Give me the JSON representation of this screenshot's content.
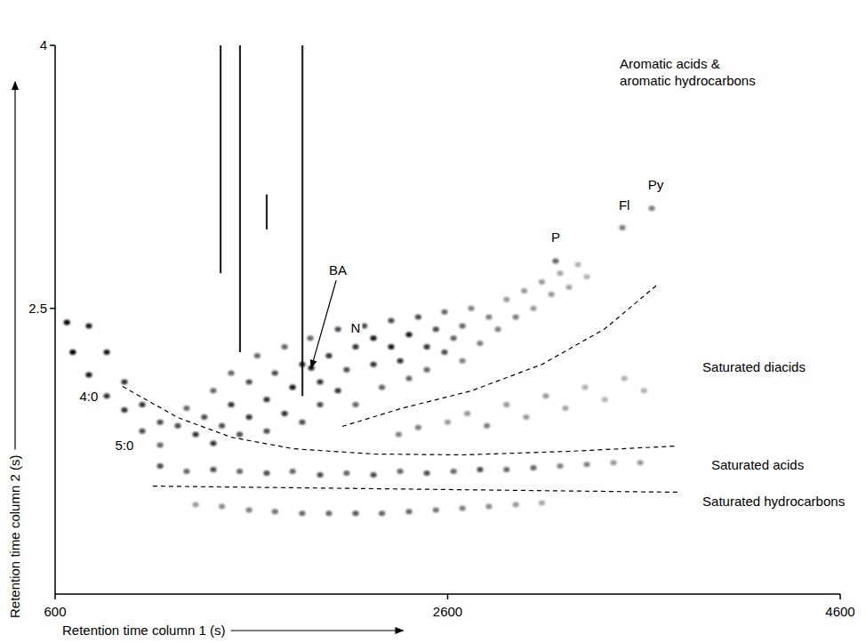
{
  "chart_data": {
    "type": "scatter",
    "x_label": "Retention time column 1 (s)",
    "y_label": "Retention time column 2 (s)",
    "xlim": [
      600,
      4600
    ],
    "ylim": [
      0.87,
      4
    ],
    "xticks": [
      600,
      2600,
      4600
    ],
    "yticks": [
      2.5,
      4
    ],
    "color": "#000000",
    "x": [
      660,
      690,
      772,
      772,
      863,
      863,
      953,
      953,
      1044,
      1044,
      1135,
      1135,
      1225,
      1270,
      1316,
      1360,
      1406,
      1406,
      1450,
      1497,
      1497,
      1540,
      1588,
      1588,
      1630,
      1678,
      1678,
      1720,
      1769,
      1769,
      1810,
      1859,
      1859,
      1900,
      1950,
      1950,
      1995,
      2041,
      2041,
      2085,
      2131,
      2131,
      2175,
      2222,
      2222,
      2265,
      2312,
      2312,
      2358,
      2403,
      2403,
      2450,
      2494,
      2494,
      2540,
      2584,
      2584,
      2630,
      2675,
      2675,
      2720,
      2765,
      2810,
      2856,
      2900,
      2947,
      2990,
      3037,
      3080,
      3128,
      3173,
      3218,
      3264,
      3309,
      1905,
      3150,
      3490,
      3640,
      2350,
      2450,
      2600,
      2700,
      2800,
      2900,
      3000,
      3100,
      3200,
      3300,
      3400,
      3500,
      3600,
      1135,
      1270,
      1406,
      1540,
      1678,
      1810,
      1950,
      2085,
      2222,
      2358,
      2494,
      2630,
      2765,
      2900,
      3037,
      3173,
      3309,
      3445,
      3581,
      1316,
      1450,
      1588,
      1720,
      1859,
      1995,
      2131,
      2265,
      2403,
      2540,
      2675,
      2810,
      2947,
      3080
    ],
    "values": [
      2.42,
      2.25,
      2.4,
      2.12,
      2.25,
      2.0,
      2.08,
      1.92,
      1.95,
      1.8,
      1.85,
      1.72,
      1.83,
      1.93,
      1.78,
      1.88,
      1.73,
      2.03,
      1.83,
      1.95,
      2.13,
      1.78,
      1.88,
      2.08,
      2.23,
      1.98,
      1.8,
      2.13,
      1.9,
      2.28,
      2.05,
      2.18,
      1.85,
      2.33,
      2.08,
      1.95,
      2.23,
      2.38,
      2.03,
      2.15,
      2.28,
      1.95,
      2.4,
      2.18,
      2.33,
      2.05,
      2.28,
      2.43,
      2.2,
      2.35,
      2.1,
      2.45,
      2.28,
      2.15,
      2.38,
      2.25,
      2.48,
      2.33,
      2.4,
      2.2,
      2.5,
      2.3,
      2.45,
      2.38,
      2.55,
      2.45,
      2.6,
      2.5,
      2.65,
      2.58,
      2.7,
      2.62,
      2.75,
      2.68,
      2.16,
      2.77,
      2.96,
      3.07,
      1.78,
      1.82,
      1.85,
      1.9,
      1.83,
      1.95,
      1.88,
      2.0,
      1.93,
      2.05,
      1.98,
      2.1,
      2.03,
      1.6,
      1.57,
      1.58,
      1.57,
      1.56,
      1.57,
      1.55,
      1.56,
      1.55,
      1.57,
      1.56,
      1.57,
      1.58,
      1.58,
      1.59,
      1.6,
      1.61,
      1.62,
      1.62,
      1.38,
      1.37,
      1.35,
      1.34,
      1.33,
      1.33,
      1.33,
      1.33,
      1.34,
      1.35,
      1.36,
      1.37,
      1.38,
      1.39
    ],
    "intensity": [
      1,
      1,
      0.9,
      0.9,
      0.9,
      0.8,
      0.8,
      0.8,
      0.8,
      0.7,
      0.7,
      0.6,
      0.7,
      0.6,
      0.8,
      0.7,
      0.8,
      0.6,
      0.7,
      0.8,
      0.6,
      0.7,
      0.8,
      0.7,
      0.6,
      0.8,
      0.7,
      0.7,
      0.8,
      0.6,
      0.9,
      0.8,
      0.7,
      0.6,
      0.8,
      0.7,
      0.8,
      0.7,
      0.8,
      0.7,
      0.8,
      0.6,
      0.7,
      0.8,
      0.9,
      0.6,
      0.9,
      0.7,
      0.8,
      0.9,
      0.6,
      0.7,
      0.8,
      0.6,
      0.7,
      0.7,
      0.6,
      0.6,
      0.6,
      0.5,
      0.5,
      0.5,
      0.5,
      0.5,
      0.4,
      0.5,
      0.4,
      0.4,
      0.4,
      0.4,
      0.35,
      0.35,
      0.3,
      0.3,
      0.9,
      0.6,
      0.5,
      0.5,
      0.5,
      0.5,
      0.4,
      0.4,
      0.5,
      0.4,
      0.4,
      0.4,
      0.35,
      0.3,
      0.3,
      0.3,
      0.3,
      0.7,
      0.6,
      0.7,
      0.6,
      0.7,
      0.6,
      0.7,
      0.6,
      0.7,
      0.6,
      0.7,
      0.6,
      0.7,
      0.6,
      0.6,
      0.5,
      0.5,
      0.4,
      0.4,
      0.4,
      0.45,
      0.5,
      0.55,
      0.6,
      0.6,
      0.65,
      0.6,
      0.6,
      0.55,
      0.5,
      0.45,
      0.4,
      0.35
    ],
    "streaks": [
      {
        "x": 1443,
        "ymin": 2.7,
        "ymax": 4
      },
      {
        "x": 1542,
        "ymin": 2.25,
        "ymax": 4
      },
      {
        "x": 1678,
        "ymin": 2.95,
        "ymax": 3.15
      },
      {
        "x": 1860,
        "ymin": 2.0,
        "ymax": 4
      }
    ],
    "boundaries": [
      {
        "x": [
          944,
          1225,
          1497,
          1814,
          2222,
          2675,
          3218,
          3762
        ],
        "y": [
          2.054,
          1.877,
          1.765,
          1.699,
          1.669,
          1.664,
          1.684,
          1.714
        ],
        "line_style": "dashed"
      },
      {
        "x": [
          2063,
          2358,
          2720,
          3082,
          3400,
          3671
        ],
        "y": [
          1.826,
          1.927,
          2.029,
          2.181,
          2.383,
          2.637
        ],
        "line_style": "dashed"
      },
      {
        "x": [
          1098,
          3785
        ],
        "y": [
          1.486,
          1.451
        ],
        "line_style": "dashed"
      }
    ],
    "annotations": [
      {
        "text": "4:0",
        "x": 772,
        "y": 1.97
      },
      {
        "text": "5:0",
        "x": 953,
        "y": 1.69
      },
      {
        "text": "BA",
        "x": 2041,
        "y": 2.69,
        "arrow_to": [
          1905,
          2.16
        ]
      },
      {
        "text": "N",
        "x": 2131,
        "y": 2.36
      },
      {
        "text": "P",
        "x": 3150,
        "y": 2.88
      },
      {
        "text": "Fl",
        "x": 3500,
        "y": 3.06
      },
      {
        "text": "Py",
        "x": 3660,
        "y": 3.18
      }
    ],
    "region_labels": [
      {
        "lines": [
          "Aromatic acids &",
          "aromatic hydrocarbons"
        ],
        "x": 3477,
        "y": 3.87
      },
      {
        "lines": [
          "Saturated diacids"
        ],
        "x": 3898,
        "y": 2.14
      },
      {
        "lines": [
          "Saturated acids"
        ],
        "x": 3943,
        "y": 1.58
      },
      {
        "lines": [
          "Saturated hydrocarbons"
        ],
        "x": 3898,
        "y": 1.37
      }
    ]
  }
}
